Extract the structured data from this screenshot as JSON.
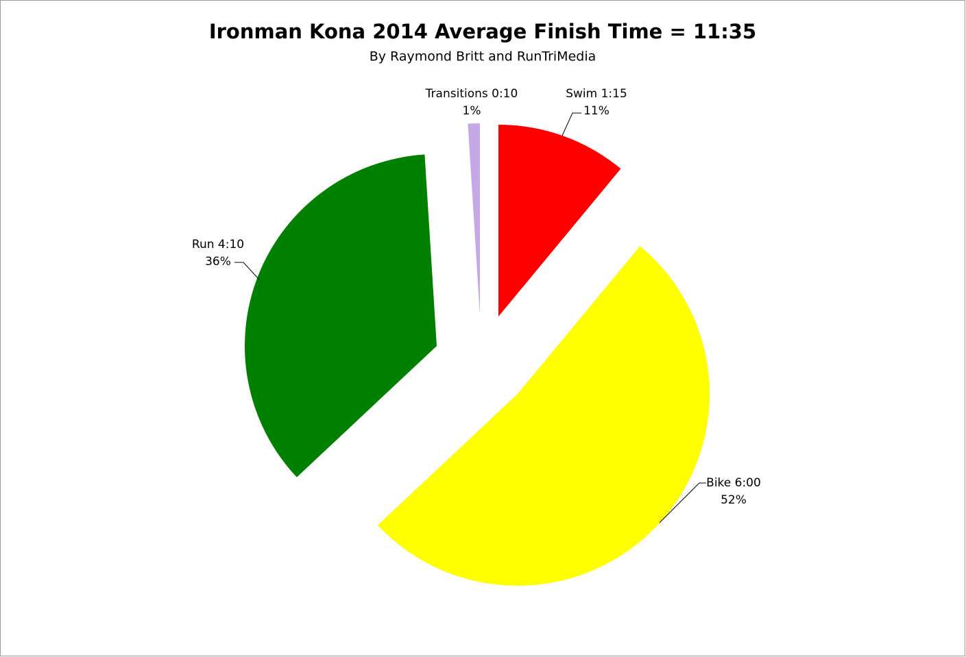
{
  "chart_data": {
    "type": "pie",
    "title": "Ironman Kona 2014 Average Finish Time = 11:35",
    "subtitle": "By Raymond Britt and RunTriMedia",
    "categories": [
      "Swim 1:15",
      "Bike 6:00",
      "Run 4:10",
      "Transitions 0:10"
    ],
    "values": [
      11,
      52,
      36,
      1
    ],
    "value_labels": [
      "11%",
      "52%",
      "36%",
      "1%"
    ],
    "colors": [
      "#ff0000",
      "#ffff00",
      "#008000",
      "#c4a9e6"
    ]
  }
}
